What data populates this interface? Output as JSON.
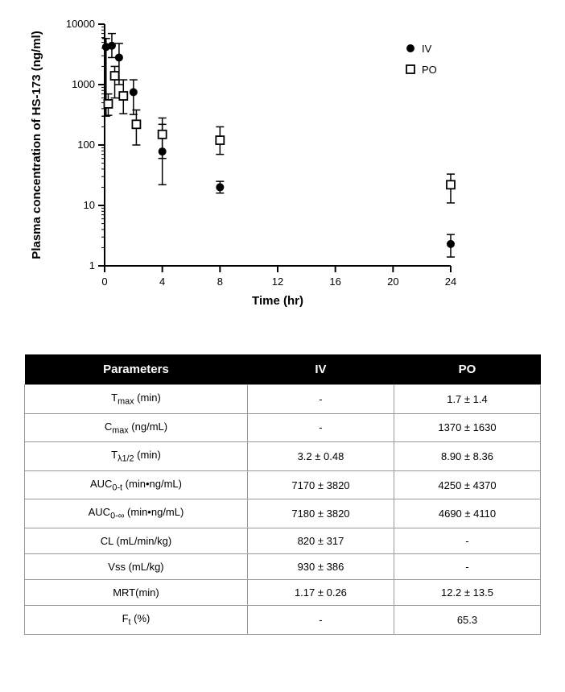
{
  "chart": {
    "type": "scatter-error-log",
    "xlabel": "Time (hr)",
    "ylabel": "Plasma concentration of HS-173 (ng/ml)",
    "xlim": [
      0,
      24
    ],
    "xticks": [
      0,
      4,
      8,
      12,
      16,
      20,
      24
    ],
    "ylim": [
      1,
      10000
    ],
    "yticks": [
      1,
      10,
      100,
      1000,
      10000
    ],
    "background_color": "#ffffff",
    "axis_color": "#000000",
    "label_fontsize": 15,
    "tick_fontsize": 13,
    "legend": {
      "items": [
        {
          "label": "IV",
          "marker": "filled-circle",
          "color": "#000000"
        },
        {
          "label": "PO",
          "marker": "open-square",
          "color": "#000000"
        }
      ],
      "position": "upper-right"
    },
    "series": [
      {
        "name": "IV",
        "marker": "filled-circle",
        "color": "#000000",
        "points": [
          {
            "x": 0.1,
            "y": 4200,
            "err_lo": 300,
            "err_hi": 5800
          },
          {
            "x": 0.5,
            "y": 4400,
            "err_lo": 2800,
            "err_hi": 7000
          },
          {
            "x": 1.0,
            "y": 2800,
            "err_lo": 1000,
            "err_hi": 4800
          },
          {
            "x": 2.0,
            "y": 750,
            "err_lo": 320,
            "err_hi": 1200
          },
          {
            "x": 4.0,
            "y": 78,
            "err_lo": 22,
            "err_hi": 220
          },
          {
            "x": 8.0,
            "y": 20,
            "err_lo": 16,
            "err_hi": 25
          },
          {
            "x": 24.0,
            "y": 2.3,
            "err_lo": 1.4,
            "err_hi": 3.3
          }
        ]
      },
      {
        "name": "PO",
        "marker": "open-square",
        "color": "#000000",
        "points": [
          {
            "x": 0.25,
            "y": 480,
            "err_lo": 310,
            "err_hi": 700
          },
          {
            "x": 0.7,
            "y": 1400,
            "err_lo": 600,
            "err_hi": 2000
          },
          {
            "x": 1.3,
            "y": 650,
            "err_lo": 330,
            "err_hi": 1200
          },
          {
            "x": 2.2,
            "y": 220,
            "err_lo": 100,
            "err_hi": 380
          },
          {
            "x": 4.0,
            "y": 150,
            "err_lo": 60,
            "err_hi": 280
          },
          {
            "x": 8.0,
            "y": 120,
            "err_lo": 70,
            "err_hi": 200
          },
          {
            "x": 24.0,
            "y": 22,
            "err_lo": 11,
            "err_hi": 33
          }
        ]
      }
    ]
  },
  "table": {
    "headers": [
      "Parameters",
      "IV",
      "PO"
    ],
    "rows": [
      {
        "param_html": "T<sub>max</sub> (min)",
        "iv": "-",
        "po": "1.7 ± 1.4"
      },
      {
        "param_html": "C<sub>max</sub> (ng/mL)",
        "iv": "-",
        "po": "1370 ± 1630"
      },
      {
        "param_html": "T<sub>λ1/2</sub> (min)",
        "iv": "3.2 ± 0.48",
        "po": "8.90 ± 8.36"
      },
      {
        "param_html": "AUC<sub>0-t</sub> (min•ng/mL)",
        "iv": "7170 ± 3820",
        "po": "4250 ± 4370"
      },
      {
        "param_html": "AUC<sub>0-∞</sub> (min•ng/mL)",
        "iv": "7180 ± 3820",
        "po": "4690 ± 4110"
      },
      {
        "param_html": "CL (mL/min/kg)",
        "iv": "820 ± 317",
        "po": "-"
      },
      {
        "param_html": "Vss (mL/kg)",
        "iv": "930 ± 386",
        "po": "-"
      },
      {
        "param_html": "MRT(min)",
        "iv": "1.17 ± 0.26",
        "po": "12.2 ± 13.5"
      },
      {
        "param_html": "F<sub>t</sub> (%)",
        "iv": "-",
        "po": "65.3"
      }
    ]
  }
}
